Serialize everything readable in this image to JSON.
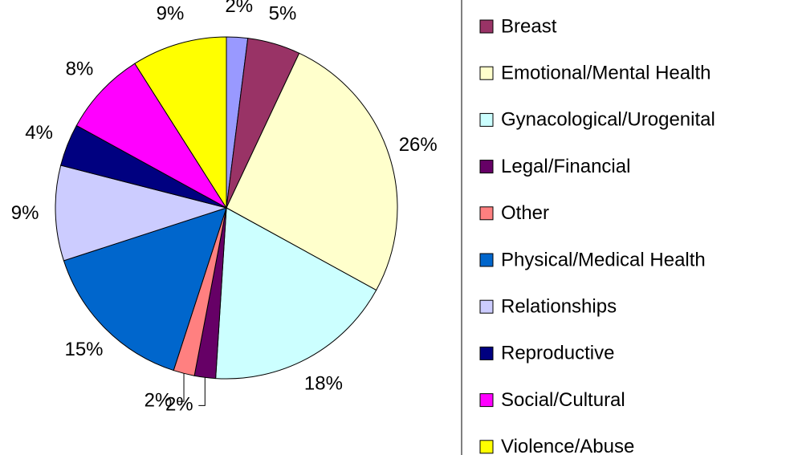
{
  "chart_data": {
    "type": "pie",
    "categories": [
      null,
      "Breast",
      "Emotional/Mental Health",
      "Gynacological/Urogenital",
      "Legal/Financial",
      "Other",
      "Physical/Medical Health",
      "Relationships",
      "Reproductive",
      "Social/Cultural",
      "Violence/Abuse"
    ],
    "values": [
      2,
      5,
      26,
      18,
      2,
      2,
      15,
      9,
      4,
      8,
      9
    ],
    "colors": [
      "#9999ff",
      "#993366",
      "#ffffcc",
      "#ccffff",
      "#660066",
      "#ff8080",
      "#0066cc",
      "#ccccff",
      "#000080",
      "#ff00ff",
      "#ffff00"
    ],
    "legend": "right"
  }
}
